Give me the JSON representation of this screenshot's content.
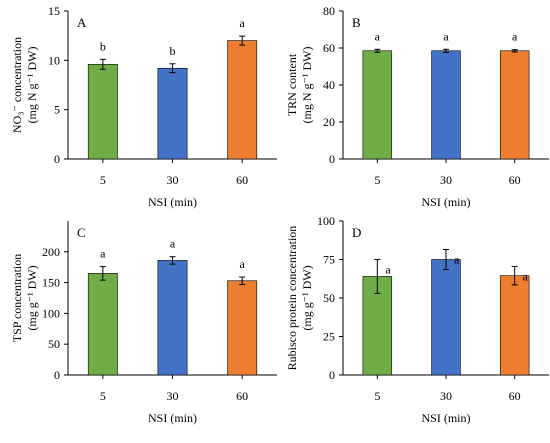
{
  "chart_data": [
    {
      "type": "bar",
      "panel": "A",
      "categories": [
        "5",
        "30",
        "60"
      ],
      "values": [
        9.6,
        9.2,
        12.0
      ],
      "errors": [
        0.5,
        0.45,
        0.45
      ],
      "significance": [
        "b",
        "b",
        "a"
      ],
      "colors": [
        "#70ad47",
        "#4472c4",
        "#ed7d31"
      ],
      "ylim": [
        0,
        15
      ],
      "yticks": [
        0,
        5,
        10,
        15
      ],
      "xlabel": "NSI (min)",
      "ylabel_line1": "NO₃⁻ concentration",
      "ylabel_line2": "(mg N g⁻¹ DW)"
    },
    {
      "type": "bar",
      "panel": "B",
      "categories": [
        "5",
        "30",
        "60"
      ],
      "values": [
        58.5,
        58.5,
        58.5
      ],
      "errors": [
        0.8,
        0.8,
        0.6
      ],
      "significance": [
        "a",
        "a",
        "a"
      ],
      "colors": [
        "#70ad47",
        "#4472c4",
        "#ed7d31"
      ],
      "ylim": [
        0,
        80
      ],
      "yticks": [
        0,
        20,
        40,
        60,
        80
      ],
      "xlabel": "NSI (min)",
      "ylabel_line1": "TRN content",
      "ylabel_line2": "(mg N g⁻¹ DW)"
    },
    {
      "type": "bar",
      "panel": "C",
      "categories": [
        "5",
        "30",
        "60"
      ],
      "values": [
        165,
        186,
        153
      ],
      "errors": [
        11,
        6,
        6
      ],
      "significance": [
        "a",
        "a",
        "a"
      ],
      "colors": [
        "#70ad47",
        "#4472c4",
        "#ed7d31"
      ],
      "ylim": [
        0,
        250
      ],
      "yticks": [
        0,
        50,
        100,
        150,
        200
      ],
      "xlabel": "NSI (min)",
      "ylabel_line1": "TSP concentration",
      "ylabel_line2": "(mg g⁻¹ DW)"
    },
    {
      "type": "bar",
      "panel": "D",
      "categories": [
        "5",
        "30",
        "60"
      ],
      "values": [
        64,
        75,
        64.5
      ],
      "errors": [
        11,
        6.5,
        6
      ],
      "significance": [
        "a",
        "a",
        "a"
      ],
      "colors": [
        "#70ad47",
        "#4472c4",
        "#ed7d31"
      ],
      "ylim": [
        0,
        100
      ],
      "yticks": [
        0,
        25,
        50,
        75,
        100
      ],
      "xlabel": "NSI (min)",
      "ylabel_line1": "Rubisco protein concentration",
      "ylabel_line2": "(mg g⁻¹ DW)"
    }
  ]
}
